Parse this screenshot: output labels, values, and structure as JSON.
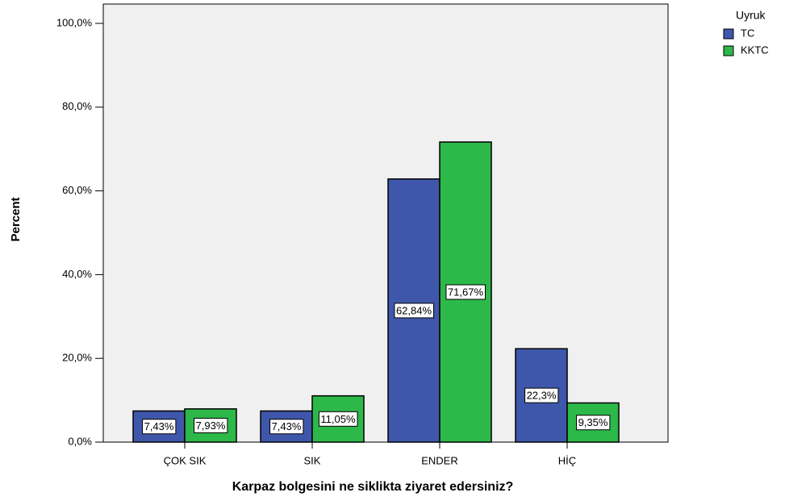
{
  "chart_data": {
    "type": "bar",
    "x_label": "Karpaz bolgesini ne siklikta ziyaret edersiniz?",
    "y_label": "Percent",
    "categories": [
      "ÇOK SIK",
      "SIK",
      "ENDER",
      "HİÇ"
    ],
    "series": [
      {
        "name": "TC",
        "color": "#3f57ab",
        "values": [
          7.43,
          7.43,
          62.84,
          22.3
        ],
        "value_labels": [
          "7,43%",
          "7,43%",
          "62,84%",
          "22,3%"
        ]
      },
      {
        "name": "KKTC",
        "color": "#2db84a",
        "values": [
          7.93,
          11.05,
          71.67,
          9.35
        ],
        "value_labels": [
          "7,93%",
          "11,05%",
          "71,67%",
          "9,35%"
        ]
      }
    ],
    "legend_title": "Uyruk",
    "legend": "top-right",
    "ylim": [
      0,
      100
    ],
    "yticks": [
      {
        "value": 0,
        "label": "0,0%"
      },
      {
        "value": 20,
        "label": "20,0%"
      },
      {
        "value": 40,
        "label": "40,0%"
      },
      {
        "value": 60,
        "label": "60,0%"
      },
      {
        "value": 80,
        "label": "80,0%"
      },
      {
        "value": 100,
        "label": "100,0%"
      }
    ]
  }
}
